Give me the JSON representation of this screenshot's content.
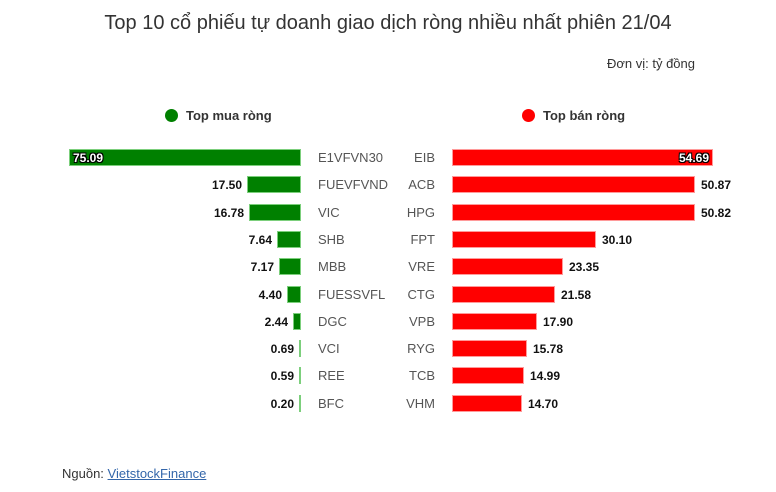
{
  "header": {
    "title": "Top 10 cổ phiếu tự doanh giao dịch ròng nhiều nhất phiên 21/04",
    "unit": "Đơn vị: tỷ đồng"
  },
  "legend": {
    "buy": {
      "label": "Top mua ròng",
      "color": "#008000"
    },
    "sell": {
      "label": "Top bán ròng",
      "color": "#ff0000"
    }
  },
  "footer": {
    "source_prefix": "Nguồn: ",
    "source_link": "VietstockFinance"
  },
  "chart_data": [
    {
      "type": "bar",
      "orientation": "horizontal",
      "title": "Top mua ròng",
      "categories": [
        "E1VFVN30",
        "FUEVFVND",
        "VIC",
        "SHB",
        "MBB",
        "FUESSVFL",
        "DGC",
        "VCI",
        "REE",
        "BFC"
      ],
      "values": [
        75.09,
        17.5,
        16.78,
        7.64,
        7.17,
        4.4,
        2.44,
        0.69,
        0.59,
        0.2
      ],
      "labels": [
        "75.09",
        "17.50",
        "16.78",
        "7.64",
        "7.17",
        "4.40",
        "2.44",
        "0.69",
        "0.59",
        "0.20"
      ],
      "color": "#008000",
      "direction": "right-to-left",
      "unit": "tỷ đồng"
    },
    {
      "type": "bar",
      "orientation": "horizontal",
      "title": "Top bán ròng",
      "categories": [
        "EIB",
        "ACB",
        "HPG",
        "FPT",
        "VRE",
        "CTG",
        "VPB",
        "RYG",
        "TCB",
        "VHM"
      ],
      "values": [
        54.69,
        50.87,
        50.82,
        30.1,
        23.35,
        21.58,
        17.9,
        15.78,
        14.99,
        14.7
      ],
      "labels": [
        "54.69",
        "50.87",
        "50.82",
        "30.10",
        "23.35",
        "21.58",
        "17.90",
        "15.78",
        "14.99",
        "14.70"
      ],
      "color": "#ff0000",
      "direction": "left-to-right",
      "unit": "tỷ đồng"
    }
  ]
}
